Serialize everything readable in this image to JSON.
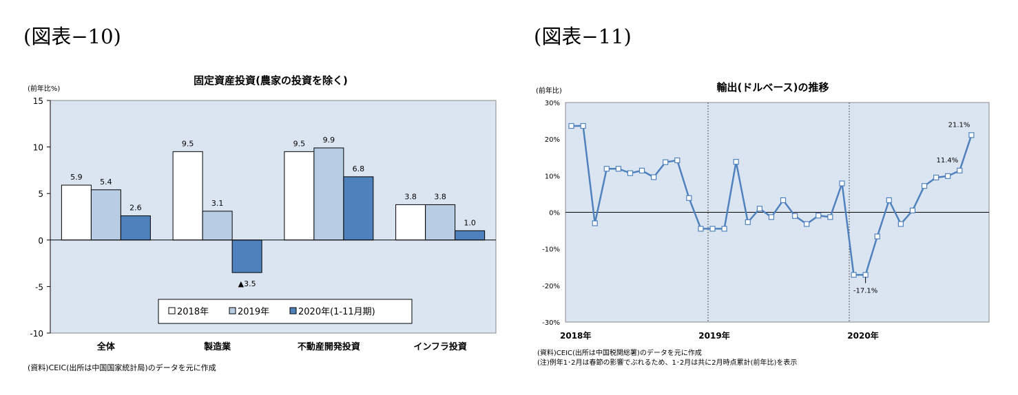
{
  "figures": {
    "fig10_label": "(図表−10)",
    "fig11_label": "(図表−11)"
  },
  "colors": {
    "plot_bg": "#dbe5f1",
    "bar_2018": "#ffffff",
    "bar_2019": "#b8cce4",
    "bar_2020": "#4f81bd",
    "line": "#4f81bd"
  },
  "chart_data": [
    {
      "type": "bar",
      "title": "固定資産投資(農家の投資を除く)",
      "ylabel": "(前年比%)",
      "ylim": [
        -10,
        15
      ],
      "yticks": [
        15,
        10,
        5,
        0,
        -5,
        -10
      ],
      "ytick_labels": [
        "15",
        "10",
        "5",
        "0",
        "-5",
        "-10"
      ],
      "categories": [
        "全体",
        "製造業",
        "不動産開発投資",
        "インフラ投資"
      ],
      "series": [
        {
          "name": "2018年",
          "values": [
            5.9,
            9.5,
            9.5,
            3.8
          ],
          "labels": [
            "5.9",
            "9.5",
            "9.5",
            "3.8"
          ]
        },
        {
          "name": "2019年",
          "values": [
            5.4,
            3.1,
            9.9,
            3.8
          ],
          "labels": [
            "5.4",
            "3.1",
            "9.9",
            "3.8"
          ]
        },
        {
          "name": "2020年(1-11月期)",
          "values": [
            2.6,
            -3.5,
            6.8,
            1.0
          ],
          "labels": [
            "2.6",
            "▲3.5",
            "6.8",
            "1.0"
          ]
        }
      ],
      "legend": "bottom",
      "grid": false,
      "source_note": "(資料)CEIC(出所は中国国家統計局)のデータを元に作成"
    },
    {
      "type": "line",
      "title": "輸出(ドルベース)の推移",
      "ylabel": "(前年比)",
      "ylim": [
        -30,
        30
      ],
      "yticks": [
        30,
        20,
        10,
        0,
        -10,
        -20,
        -30
      ],
      "ytick_labels": [
        "30%",
        "20%",
        "10%",
        "0%",
        "-10%",
        "-20%",
        "-30%"
      ],
      "xtick_labels": [
        "2018年",
        "2019年",
        "2020年"
      ],
      "x_start": "2018-01",
      "x_end": "2020-11",
      "values": [
        23.6,
        23.6,
        -3.0,
        11.9,
        11.9,
        10.7,
        11.4,
        9.6,
        13.7,
        14.2,
        3.9,
        -4.5,
        -4.5,
        -4.5,
        13.8,
        -2.7,
        1.0,
        -1.3,
        3.3,
        -1.0,
        -3.2,
        -0.9,
        -1.3,
        7.9,
        -17.1,
        -17.1,
        -6.6,
        3.3,
        -3.2,
        0.5,
        7.2,
        9.5,
        9.9,
        11.4,
        21.1
      ],
      "annotations": [
        {
          "label": "21.1%",
          "index": 34
        },
        {
          "label": "11.4%",
          "index": 33
        },
        {
          "label": "-17.1%",
          "index": 25
        }
      ],
      "year_dividers": [
        "2019-01",
        "2020-01"
      ],
      "grid": false,
      "notes": [
        "(資料)CEIC(出所は中国税関総署)のデータを元に作成",
        "(注)例年1･2月は春節の影響でぶれるため、1･2月は共に2月時点累計(前年比)を表示"
      ]
    }
  ]
}
